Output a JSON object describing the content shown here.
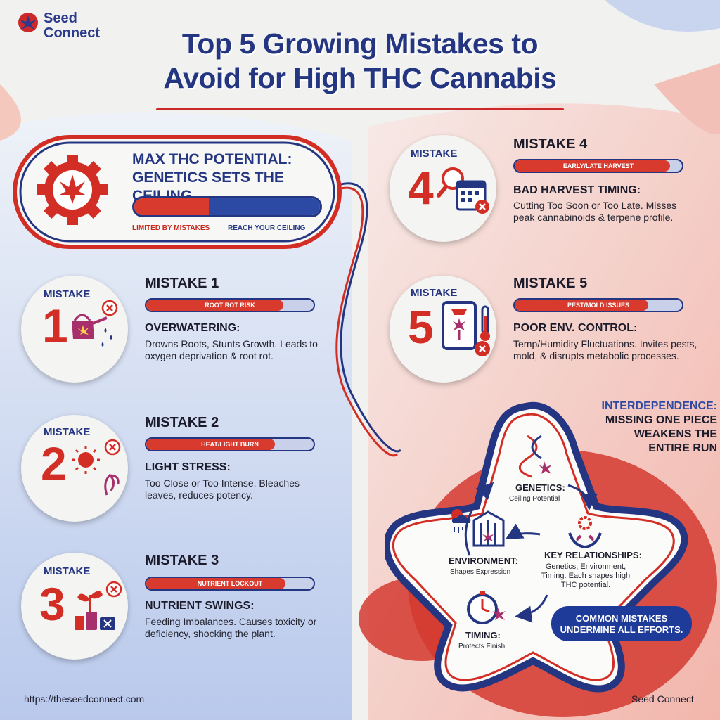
{
  "brand": {
    "line1": "Seed",
    "line2": "Connect"
  },
  "title": {
    "line1": "Top 5 Growing Mistakes to",
    "line2": "Avoid for High THC Cannabis"
  },
  "potential": {
    "title_line1": "MAX THC POTENTIAL:",
    "title_line2": "GENETICS SETS THE CEILING",
    "bar_fill_fraction": 0.4,
    "label_left": "LIMITED BY MISTAKES",
    "label_right": "REACH YOUR CEILING",
    "icon": "gear-cannabis-leaf-icon"
  },
  "mistakes": [
    {
      "label": "MISTAKE",
      "number": "1",
      "heading": "MISTAKE 1",
      "bar_text": "ROOT ROT RISK",
      "bar_fill_fraction": 0.82,
      "subheading": "OVERWATERING:",
      "description": "Drowns Roots, Stunts Growth. Leads to oxygen deprivation & root rot.",
      "icon": "watering-can-icon"
    },
    {
      "label": "MISTAKE",
      "number": "2",
      "heading": "MISTAKE 2",
      "bar_text": "HEAT/LIGHT BURN",
      "bar_fill_fraction": 0.77,
      "subheading": "LIGHT STRESS:",
      "description": "Too Close or Too Intense. Bleaches leaves, reduces potency.",
      "icon": "sun-wilting-leaf-icon"
    },
    {
      "label": "MISTAKE",
      "number": "3",
      "heading": "MISTAKE 3",
      "bar_text": "NUTRIENT LOCKOUT",
      "bar_fill_fraction": 0.83,
      "subheading": "NUTRIENT SWINGS:",
      "description": "Feeding Imbalances. Causes toxicity or deficiency, shocking the plant.",
      "icon": "plant-nutrient-bottles-icon"
    },
    {
      "label": "MISTAKE",
      "number": "4",
      "heading": "MISTAKE 4",
      "bar_text": "EARLY/LATE HARVEST",
      "bar_fill_fraction": 0.93,
      "subheading": "BAD HARVEST TIMING:",
      "description": "Cutting Too Soon or Too Late. Misses peak cannabinoids & terpene profile.",
      "icon": "magnifier-calendar-icon"
    },
    {
      "label": "MISTAKE",
      "number": "5",
      "heading": "MISTAKE 5",
      "bar_text": "PEST/MOLD ISSUES",
      "bar_fill_fraction": 0.8,
      "subheading": "POOR ENV. CONTROL:",
      "description": "Temp/Humidity Fluctuations. Invites pests, mold, & disrupts metabolic processes.",
      "icon": "grow-tent-thermometer-icon"
    }
  ],
  "interdependence": {
    "title": "INTERDEPENDENCE:",
    "line1": "MISSING ONE PIECE",
    "line2": "WEAKENS THE",
    "line3": "ENTIRE RUN"
  },
  "cycle": {
    "genetics": {
      "title": "GENETICS:",
      "sub": "Ceiling Potential",
      "icon": "dna-leaf-icon"
    },
    "environment": {
      "title": "ENVIRONMENT:",
      "sub": "Shapes Expression",
      "icon": "greenhouse-weather-icon"
    },
    "timing": {
      "title": "TIMING:",
      "sub": "Protects Finish",
      "icon": "stopwatch-leaf-icon"
    },
    "key": {
      "title": "KEY RELATIONSHIPS:",
      "desc": "Genetics, Environment, Timing. Each shapes high THC potential.",
      "icon": "hands-gear-icon"
    }
  },
  "callout": {
    "line1": "COMMON MISTAKES",
    "line2": "UNDERMINE ALL EFFORTS."
  },
  "footer": {
    "url": "https://theseedconnect.com",
    "brand": "Seed Connect"
  },
  "colors": {
    "navy": "#243682",
    "red": "#d32e26",
    "blue": "#2c4aa3"
  }
}
